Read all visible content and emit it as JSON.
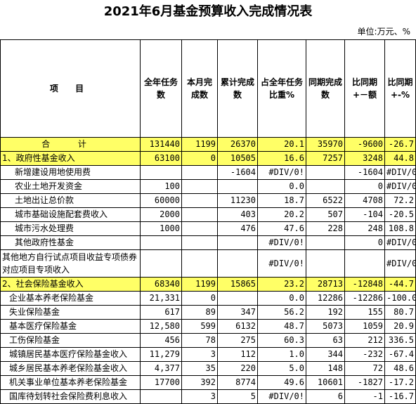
{
  "title": "2021年6月基金预算收入完成情况表",
  "unit": "单位:万元、%",
  "headers": [
    {
      "key": "item",
      "label": "项  目"
    },
    {
      "key": "annual",
      "label": "全年任务数"
    },
    {
      "key": "month",
      "label": "本月完成数"
    },
    {
      "key": "cum",
      "label": "累计完成数"
    },
    {
      "key": "pct",
      "label": "占全年任务比重%"
    },
    {
      "key": "prev",
      "label": "同期完成数"
    },
    {
      "key": "diff",
      "label": "比同期+－额"
    },
    {
      "key": "ratio",
      "label": "比同期+-%"
    }
  ],
  "rows": [
    {
      "name": "合    计",
      "annual": "131440",
      "month": "1199",
      "cum": "26370",
      "pct": "20.1",
      "prev": "35970",
      "diff": "-9600",
      "ratio": "-26.7",
      "style": "total"
    },
    {
      "name": "1、政府性基金收入",
      "annual": "63100",
      "month": "0",
      "cum": "10505",
      "pct": "16.6",
      "prev": "7257",
      "diff": "3248",
      "ratio": "44.8",
      "style": "section"
    },
    {
      "name": "新增建设用地使用费",
      "annual": "",
      "month": "",
      "cum": "-1604",
      "pct": "#DIV/0!",
      "prev": "",
      "diff": "-1604",
      "ratio": "#DIV/0!",
      "style": "sub"
    },
    {
      "name": "农业土地开发资金",
      "annual": "100",
      "month": "",
      "cum": "",
      "pct": "0.0",
      "prev": "",
      "diff": "0",
      "ratio": "#DIV/0!",
      "style": "sub"
    },
    {
      "name": "土地出让总价款",
      "annual": "60000",
      "month": "",
      "cum": "11230",
      "pct": "18.7",
      "prev": "6522",
      "diff": "4708",
      "ratio": "72.2",
      "style": "sub"
    },
    {
      "name": "城市基础设施配套费收入",
      "annual": "2000",
      "month": "",
      "cum": "403",
      "pct": "20.2",
      "prev": "507",
      "diff": "-104",
      "ratio": "-20.5",
      "style": "sub"
    },
    {
      "name": "城市污水处理费",
      "annual": "1000",
      "month": "",
      "cum": "476",
      "pct": "47.6",
      "prev": "228",
      "diff": "248",
      "ratio": "108.8",
      "style": "sub"
    },
    {
      "name": "其他政府性基金",
      "annual": "",
      "month": "",
      "cum": "",
      "pct": "#DIV/0!",
      "prev": "",
      "diff": "0",
      "ratio": "#DIV/0!",
      "style": "sub"
    },
    {
      "name": "其他地方自行试点项目收益专项债券对应项目专项收入",
      "annual": "",
      "month": "",
      "cum": "",
      "pct": "#DIV/0!",
      "prev": "",
      "diff": "",
      "ratio": "#DIV/0!",
      "style": "tall"
    },
    {
      "name": "2、社会保险基金收入",
      "annual": "68340",
      "month": "1199",
      "cum": "15865",
      "pct": "23.2",
      "prev": "28713",
      "diff": "-12848",
      "ratio": "-44.7",
      "style": "section"
    },
    {
      "name": "企业基本养老保险基金",
      "annual": "21,331",
      "month": "0",
      "cum": "",
      "pct": "0.0",
      "prev": "12286",
      "diff": "-12286",
      "ratio": "-100.0",
      "style": "sub2"
    },
    {
      "name": "失业保险基金",
      "annual": "617",
      "month": "89",
      "cum": "347",
      "pct": "56.2",
      "prev": "192",
      "diff": "155",
      "ratio": "80.7",
      "style": "sub2"
    },
    {
      "name": "基本医疗保险基金",
      "annual": "12,580",
      "month": "599",
      "cum": "6132",
      "pct": "48.7",
      "prev": "5073",
      "diff": "1059",
      "ratio": "20.9",
      "style": "sub2"
    },
    {
      "name": "工伤保险基金",
      "annual": "456",
      "month": "78",
      "cum": "275",
      "pct": "60.3",
      "prev": "63",
      "diff": "212",
      "ratio": "336.5",
      "style": "sub2"
    },
    {
      "name": "城镇居民基本医疗保险基金收入",
      "annual": "11,279",
      "month": "3",
      "cum": "112",
      "pct": "1.0",
      "prev": "344",
      "diff": "-232",
      "ratio": "-67.4",
      "style": "sub2"
    },
    {
      "name": "城乡居民基本养老保险基金收入",
      "annual": "4,377",
      "month": "35",
      "cum": "220",
      "pct": "5.0",
      "prev": "148",
      "diff": "72",
      "ratio": "48.6",
      "style": "sub2"
    },
    {
      "name": "机关事业单位基本养老保险基金",
      "annual": "17700",
      "month": "392",
      "cum": "8774",
      "pct": "49.6",
      "prev": "10601",
      "diff": "-1827",
      "ratio": "-17.2",
      "style": "sub2"
    },
    {
      "name": "国库待划转社会保险费利息收入",
      "annual": "",
      "month": "3",
      "cum": "5",
      "pct": "#DIV/0!",
      "prev": "6",
      "diff": "-1",
      "ratio": "-16.7",
      "style": "sub2"
    }
  ]
}
